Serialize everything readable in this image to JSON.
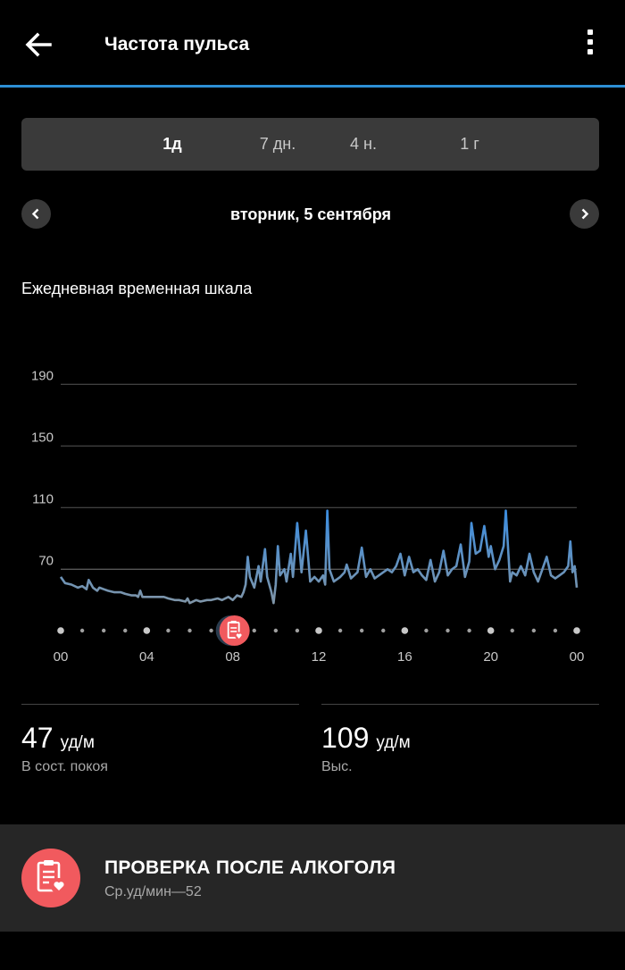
{
  "header": {
    "title": "Частота пульса",
    "back_icon": "arrow-left-icon",
    "menu_icon": "more-vertical-icon"
  },
  "tabs": [
    {
      "label": "1д",
      "active": true
    },
    {
      "label": "7 дн.",
      "active": false
    },
    {
      "label": "4 н.",
      "active": false
    },
    {
      "label": "1 г",
      "active": false
    }
  ],
  "date_nav": {
    "date": "вторник, 5 сентября",
    "prev_icon": "chevron-left-icon",
    "next_icon": "chevron-right-icon"
  },
  "section_title": "Ежедневная временная шкала",
  "chart_data": {
    "type": "line",
    "title": "",
    "xlabel": "",
    "ylabel": "",
    "x_ticks": [
      "00",
      "04",
      "08",
      "12",
      "16",
      "20",
      "00"
    ],
    "y_ticks": [
      70,
      110,
      150,
      190
    ],
    "ylim": [
      40,
      190
    ],
    "xlim": [
      0,
      24
    ],
    "grid": true,
    "line_color": "#4a90d9",
    "series": [
      {
        "values": [
          [
            0.0,
            65
          ],
          [
            0.2,
            61
          ],
          [
            0.5,
            60
          ],
          [
            0.8,
            58
          ],
          [
            1.0,
            59
          ],
          [
            1.2,
            57
          ],
          [
            1.5,
            58
          ],
          [
            1.7,
            56
          ],
          [
            1.8,
            58
          ],
          [
            1.3,
            63
          ],
          [
            2.0,
            57
          ],
          [
            2.2,
            56
          ],
          [
            2.5,
            55
          ],
          [
            2.8,
            55
          ],
          [
            3.0,
            54
          ],
          [
            3.3,
            53
          ],
          [
            3.5,
            53
          ],
          [
            3.6,
            52
          ],
          [
            3.7,
            56
          ],
          [
            3.8,
            52
          ],
          [
            4.0,
            52
          ],
          [
            4.2,
            52
          ],
          [
            4.5,
            52
          ],
          [
            4.8,
            52
          ],
          [
            5.0,
            51
          ],
          [
            5.3,
            50
          ],
          [
            5.5,
            50
          ],
          [
            5.8,
            49
          ],
          [
            5.9,
            51
          ],
          [
            6.0,
            48
          ],
          [
            6.3,
            50
          ],
          [
            6.5,
            49
          ],
          [
            6.8,
            50
          ],
          [
            7.0,
            50
          ],
          [
            7.3,
            51
          ],
          [
            7.5,
            50
          ],
          [
            7.8,
            52
          ],
          [
            8.0,
            50
          ],
          [
            8.2,
            53
          ],
          [
            8.4,
            52
          ],
          [
            8.5,
            55
          ],
          [
            8.6,
            60
          ],
          [
            8.7,
            78
          ],
          [
            8.8,
            65
          ],
          [
            9.0,
            58
          ],
          [
            9.2,
            72
          ],
          [
            9.3,
            62
          ],
          [
            9.5,
            83
          ],
          [
            9.6,
            65
          ],
          [
            9.8,
            55
          ],
          [
            9.9,
            48
          ],
          [
            10.0,
            60
          ],
          [
            10.1,
            85
          ],
          [
            10.2,
            66
          ],
          [
            10.4,
            70
          ],
          [
            10.5,
            62
          ],
          [
            10.7,
            80
          ],
          [
            10.8,
            65
          ],
          [
            11.0,
            100
          ],
          [
            11.2,
            68
          ],
          [
            11.4,
            95
          ],
          [
            11.6,
            62
          ],
          [
            11.8,
            65
          ],
          [
            12.0,
            62
          ],
          [
            12.2,
            66
          ],
          [
            12.3,
            60
          ],
          [
            12.4,
            108
          ],
          [
            12.5,
            70
          ],
          [
            12.7,
            62
          ],
          [
            13.0,
            65
          ],
          [
            13.2,
            68
          ],
          [
            13.3,
            73
          ],
          [
            13.5,
            64
          ],
          [
            13.8,
            68
          ],
          [
            14.0,
            84
          ],
          [
            14.2,
            65
          ],
          [
            14.4,
            70
          ],
          [
            14.6,
            64
          ],
          [
            14.8,
            66
          ],
          [
            15.0,
            68
          ],
          [
            15.2,
            70
          ],
          [
            15.4,
            68
          ],
          [
            15.6,
            72
          ],
          [
            15.8,
            80
          ],
          [
            16.0,
            66
          ],
          [
            16.2,
            78
          ],
          [
            16.4,
            68
          ],
          [
            16.6,
            70
          ],
          [
            16.8,
            66
          ],
          [
            17.0,
            63
          ],
          [
            17.2,
            76
          ],
          [
            17.4,
            62
          ],
          [
            17.6,
            68
          ],
          [
            17.8,
            82
          ],
          [
            18.0,
            66
          ],
          [
            18.2,
            70
          ],
          [
            18.4,
            72
          ],
          [
            18.6,
            86
          ],
          [
            18.8,
            65
          ],
          [
            19.0,
            75
          ],
          [
            19.1,
            100
          ],
          [
            19.3,
            80
          ],
          [
            19.5,
            82
          ],
          [
            19.7,
            98
          ],
          [
            19.9,
            78
          ],
          [
            20.0,
            85
          ],
          [
            20.2,
            70
          ],
          [
            20.4,
            76
          ],
          [
            20.6,
            85
          ],
          [
            20.7,
            108
          ],
          [
            20.9,
            62
          ],
          [
            21.0,
            68
          ],
          [
            21.2,
            66
          ],
          [
            21.4,
            72
          ],
          [
            21.6,
            66
          ],
          [
            21.8,
            80
          ],
          [
            22.0,
            68
          ],
          [
            22.2,
            62
          ],
          [
            22.4,
            70
          ],
          [
            22.6,
            78
          ],
          [
            22.8,
            66
          ],
          [
            23.0,
            64
          ],
          [
            23.2,
            66
          ],
          [
            23.4,
            68
          ],
          [
            23.6,
            72
          ],
          [
            23.7,
            88
          ],
          [
            23.8,
            68
          ],
          [
            23.9,
            72
          ],
          [
            24.0,
            58
          ]
        ]
      }
    ],
    "marker": {
      "x": 8.0,
      "icon": "clipboard-heart-icon",
      "color": "#f15a5e"
    }
  },
  "stats": [
    {
      "value": "47",
      "unit": "уд/м",
      "caption": "В сост. покоя"
    },
    {
      "value": "109",
      "unit": "уд/м",
      "caption": "Выс."
    }
  ],
  "activity_card": {
    "icon": "clipboard-heart-icon",
    "title": "ПРОВЕРКА ПОСЛЕ АЛКОГОЛЯ",
    "subtitle": "Ср.уд/мин—52",
    "icon_color": "#f15a5e"
  }
}
